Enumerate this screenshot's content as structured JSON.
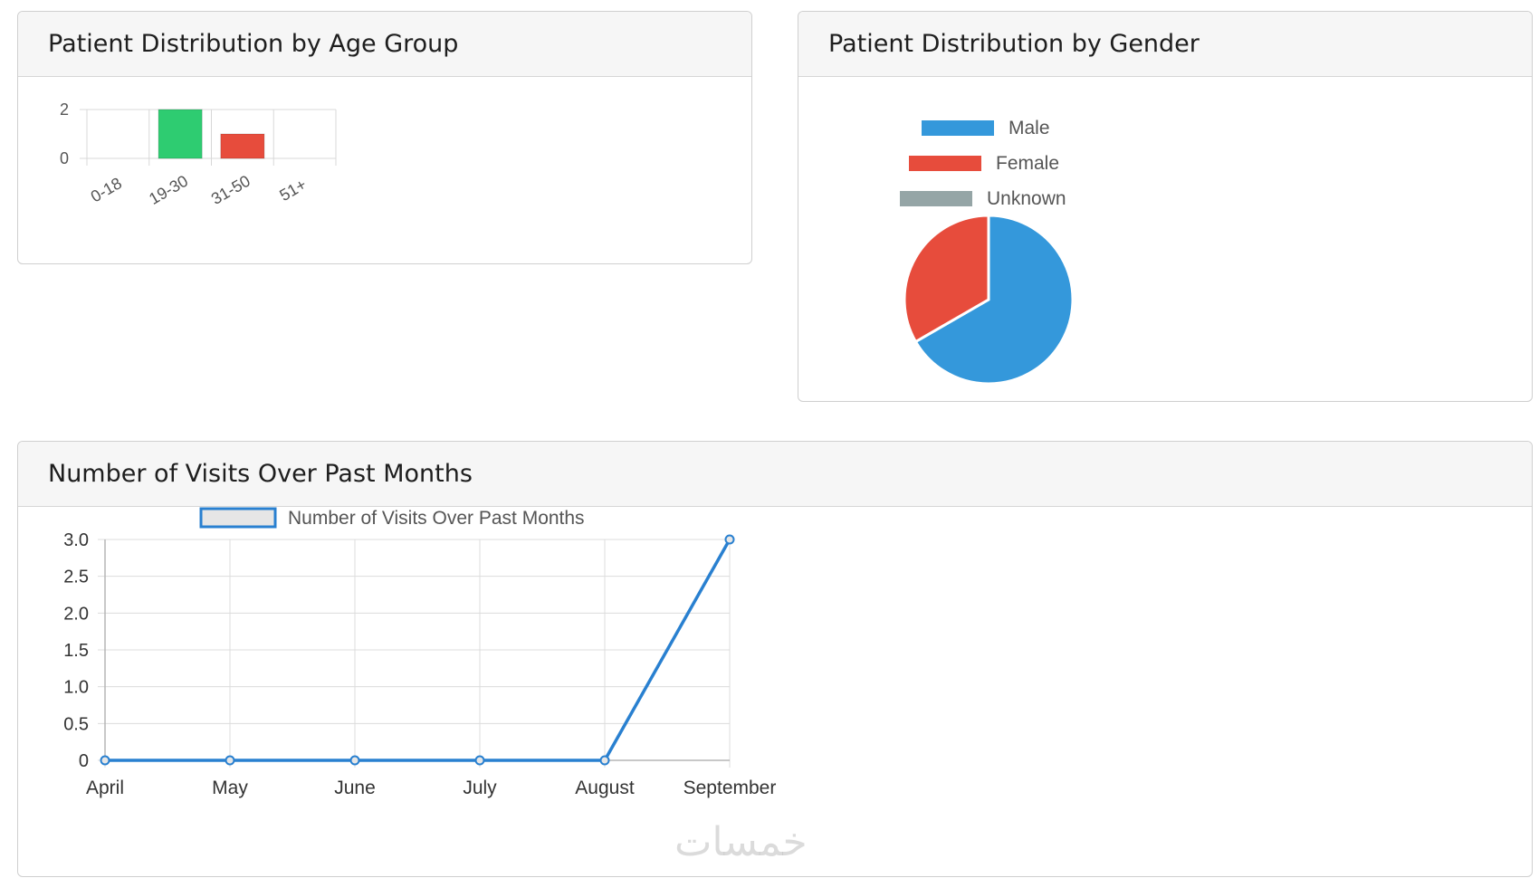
{
  "panels": {
    "age": {
      "title": "Patient Distribution by Age Group"
    },
    "gender": {
      "title": "Patient Distribution by Gender"
    },
    "visits": {
      "title": "Number of Visits Over Past Months"
    }
  },
  "watermark": "خمسات",
  "chart_data": [
    {
      "type": "bar",
      "categories": [
        "0-18",
        "19-30",
        "31-50",
        "51+"
      ],
      "values": [
        0,
        2,
        1,
        0
      ],
      "colors": [
        "#9aa5a6",
        "#2ecc71",
        "#e74c3c",
        "#9aa5a6"
      ],
      "ylim": [
        0,
        2
      ],
      "yticks": [
        "2",
        "0"
      ],
      "grid": true
    },
    {
      "type": "pie",
      "labels": [
        "Male",
        "Female",
        "Unknown"
      ],
      "values": [
        2,
        1,
        0
      ],
      "colors": [
        "#3498db",
        "#e74c3c",
        "#95a5a6"
      ],
      "legend": "top"
    },
    {
      "type": "line",
      "categories": [
        "April",
        "May",
        "June",
        "July",
        "August",
        "September"
      ],
      "series": [
        {
          "name": "Number of Visits Over Past Months",
          "values": [
            0,
            0,
            0,
            0,
            0,
            3
          ],
          "color": "#2980d0"
        }
      ],
      "ylim": [
        0,
        3
      ],
      "yticks": [
        "3.0",
        "2.5",
        "2.0",
        "1.5",
        "1.0",
        "0.5",
        "0"
      ],
      "grid": true,
      "legend": "top"
    }
  ]
}
